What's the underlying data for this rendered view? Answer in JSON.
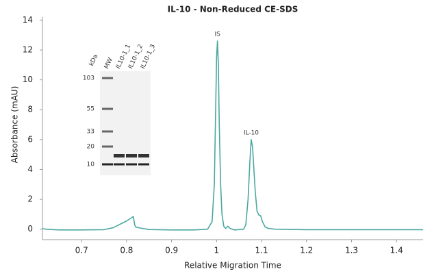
{
  "chart_data": {
    "type": "line",
    "title": "IL-10 - Non-Reduced CE-SDS",
    "x_label": "Relative Migration Time",
    "y_label": "Absorbance (mAU)",
    "color": "#4aa89f",
    "x": [
      0.613,
      0.62,
      0.65,
      0.7,
      0.75,
      0.77,
      0.78,
      0.79,
      0.8,
      0.81,
      0.815,
      0.818,
      0.82,
      0.83,
      0.85,
      0.9,
      0.95,
      0.98,
      0.99,
      0.995,
      0.998,
      1.0,
      1.002,
      1.004,
      1.006,
      1.009,
      1.012,
      1.016,
      1.02,
      1.025,
      1.03,
      1.04,
      1.06,
      1.065,
      1.07,
      1.074,
      1.077,
      1.08,
      1.083,
      1.086,
      1.09,
      1.094,
      1.098,
      1.102,
      1.108,
      1.115,
      1.13,
      1.2,
      1.3,
      1.4,
      1.459
    ],
    "values": [
      0.05,
      0.0,
      -0.05,
      -0.05,
      -0.03,
      0.1,
      0.25,
      0.4,
      0.55,
      0.75,
      0.85,
      0.3,
      0.15,
      0.08,
      -0.02,
      -0.05,
      -0.05,
      0.0,
      0.5,
      3,
      8,
      11.5,
      12.6,
      11,
      7,
      3,
      1,
      0.2,
      0.05,
      0.2,
      0.05,
      -0.05,
      0.0,
      0.3,
      2.0,
      4.5,
      6.0,
      5.5,
      4.0,
      2.5,
      1.2,
      0.95,
      0.9,
      0.5,
      0.15,
      0.05,
      0.0,
      -0.03,
      -0.03,
      -0.03,
      -0.03
    ],
    "xlim": [
      0.613,
      1.459
    ],
    "xticks": [
      0.7,
      0.8,
      0.9,
      1,
      1.1,
      1.2,
      1.3,
      1.4
    ],
    "ylim": [
      -0.7,
      14.2
    ],
    "yticks": [
      0,
      2,
      4,
      6,
      8,
      10,
      12,
      14
    ],
    "annotations": [
      {
        "text": "IS",
        "x": 1.002,
        "y": 12.6
      },
      {
        "text": "IL-10",
        "x": 1.077,
        "y": 6.0
      }
    ],
    "inset": {
      "unit": "kDa",
      "lanes": [
        "MW",
        "IL10-1_1",
        "IL10-1_2",
        "IL10-1_3"
      ],
      "ladder": [
        103,
        55,
        33,
        20,
        10
      ]
    }
  }
}
